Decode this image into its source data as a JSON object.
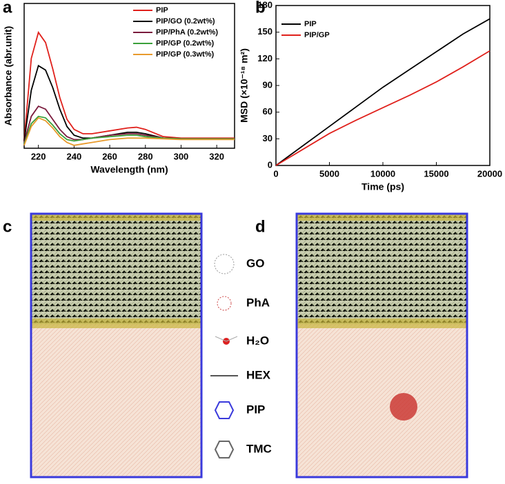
{
  "chart_data": [
    {
      "type": "line",
      "x_label": "Wavelength (nm)",
      "y_label": "Absorbance (abr.unit)",
      "x": [
        212,
        216,
        220,
        224,
        228,
        232,
        236,
        240,
        245,
        250,
        260,
        270,
        275,
        280,
        290,
        300,
        310,
        320,
        330
      ],
      "xlim": [
        212,
        330
      ],
      "xticks": [
        220,
        240,
        260,
        280,
        300,
        320
      ],
      "ylim": [
        0,
        1
      ],
      "legend": "top-right",
      "series": [
        {
          "name": "PIP",
          "color": "#e0201b",
          "values": [
            0.05,
            0.62,
            0.8,
            0.73,
            0.55,
            0.35,
            0.2,
            0.13,
            0.1,
            0.1,
            0.12,
            0.14,
            0.145,
            0.13,
            0.08,
            0.07,
            0.07,
            0.07,
            0.07
          ]
        },
        {
          "name": "PIP/GO (0.2wt%)",
          "color": "#000000",
          "values": [
            0.05,
            0.4,
            0.57,
            0.54,
            0.42,
            0.27,
            0.15,
            0.09,
            0.07,
            0.07,
            0.09,
            0.11,
            0.11,
            0.1,
            0.07,
            0.065,
            0.065,
            0.065,
            0.065
          ]
        },
        {
          "name": "PIP/PhA (0.2wt%)",
          "color": "#7a1a3c",
          "values": [
            0.04,
            0.22,
            0.29,
            0.27,
            0.2,
            0.13,
            0.08,
            0.06,
            0.06,
            0.07,
            0.09,
            0.1,
            0.1,
            0.09,
            0.07,
            0.065,
            0.065,
            0.065,
            0.065
          ]
        },
        {
          "name": "PIP/GP (0.2wt%)",
          "color": "#3aa03a",
          "values": [
            0.03,
            0.17,
            0.22,
            0.21,
            0.16,
            0.1,
            0.06,
            0.05,
            0.06,
            0.07,
            0.08,
            0.09,
            0.09,
            0.08,
            0.07,
            0.065,
            0.065,
            0.065,
            0.065
          ]
        },
        {
          "name": "PIP/GP (0.3wt%)",
          "color": "#e89a2c",
          "values": [
            0.02,
            0.15,
            0.21,
            0.19,
            0.14,
            0.08,
            0.04,
            0.02,
            0.03,
            0.04,
            0.06,
            0.07,
            0.07,
            0.07,
            0.065,
            0.06,
            0.06,
            0.06,
            0.06
          ]
        }
      ]
    },
    {
      "type": "line",
      "x_label": "Time (ps)",
      "y_label": "MSD (×10⁻¹⁸ m²)",
      "x": [
        0,
        2500,
        5000,
        7500,
        10000,
        12500,
        15000,
        17500,
        20000
      ],
      "xlim": [
        0,
        20000
      ],
      "xticks": [
        0,
        5000,
        10000,
        15000,
        20000
      ],
      "ylim": [
        0,
        180
      ],
      "yticks": [
        0,
        30,
        60,
        90,
        120,
        150,
        180
      ],
      "legend": "top-left",
      "series": [
        {
          "name": "PIP",
          "color": "#000000",
          "values": [
            0,
            22,
            44,
            66,
            88,
            108,
            128,
            148,
            165
          ]
        },
        {
          "name": "PIP/GP",
          "color": "#e0201b",
          "values": [
            0,
            18,
            36,
            51,
            65,
            79,
            94,
            111,
            129
          ]
        }
      ]
    }
  ],
  "panels": [
    "a",
    "b",
    "c",
    "d"
  ],
  "molecules": [
    "GO",
    "PhA",
    "H₂O",
    "HEX",
    "PIP",
    "TMC"
  ]
}
